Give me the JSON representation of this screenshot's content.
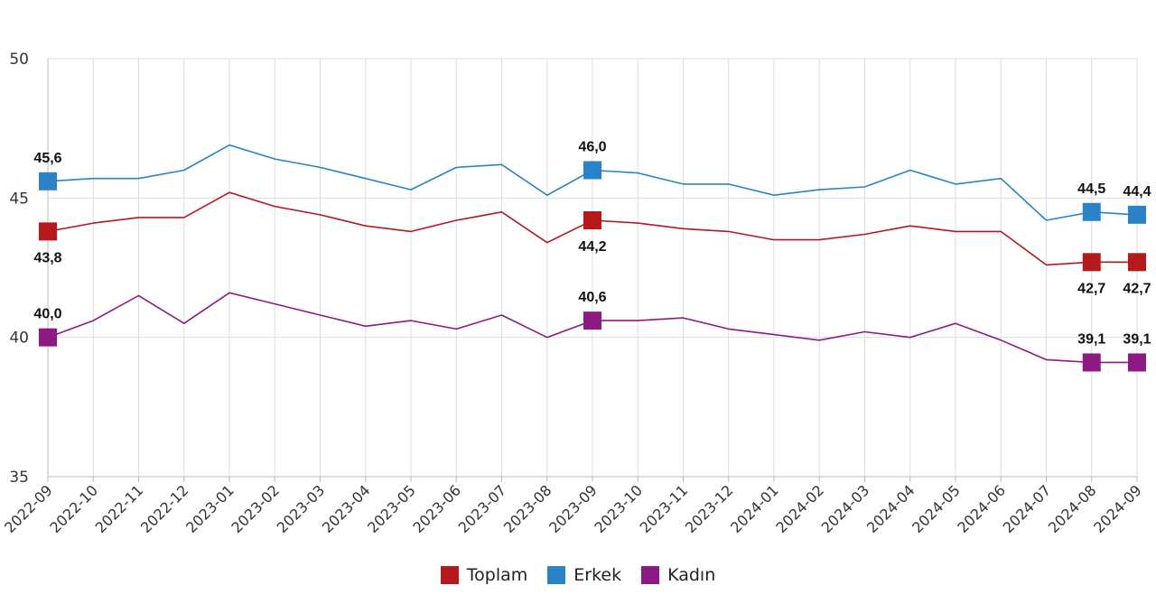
{
  "chart_data": {
    "type": "line",
    "title": "",
    "xlabel": "",
    "ylabel": "",
    "ylim": [
      35,
      50
    ],
    "yticks": [
      35,
      40,
      45,
      50
    ],
    "grid": true,
    "legend_position": "bottom-center",
    "categories": [
      "2022-09",
      "2022-10",
      "2022-11",
      "2022-12",
      "2023-01",
      "2023-02",
      "2023-03",
      "2023-04",
      "2023-05",
      "2023-06",
      "2023-07",
      "2023-08",
      "2023-09",
      "2023-10",
      "2023-11",
      "2023-12",
      "2024-01",
      "2024-02",
      "2024-03",
      "2024-04",
      "2024-05",
      "2024-06",
      "2024-07",
      "2024-08",
      "2024-09"
    ],
    "series": [
      {
        "name": "Toplam",
        "color": "#b5191c",
        "values": [
          43.8,
          44.1,
          44.3,
          44.3,
          45.2,
          44.7,
          44.4,
          44.0,
          43.8,
          44.2,
          44.5,
          43.4,
          44.2,
          44.1,
          43.9,
          43.8,
          43.5,
          43.5,
          43.7,
          44.0,
          43.8,
          43.8,
          42.6,
          42.7,
          42.7
        ],
        "labeled_points": [
          {
            "index": 0,
            "text": "43,8",
            "position": "below"
          },
          {
            "index": 12,
            "text": "44,2",
            "position": "below"
          },
          {
            "index": 23,
            "text": "42,7",
            "position": "below"
          },
          {
            "index": 24,
            "text": "42,7",
            "position": "below"
          }
        ]
      },
      {
        "name": "Erkek",
        "color": "#2a83c7",
        "values": [
          45.6,
          45.7,
          45.7,
          46.0,
          46.9,
          46.4,
          46.1,
          45.7,
          45.3,
          46.1,
          46.2,
          45.1,
          46.0,
          45.9,
          45.5,
          45.5,
          45.1,
          45.3,
          45.4,
          46.0,
          45.5,
          45.7,
          44.2,
          44.5,
          44.4
        ],
        "labeled_points": [
          {
            "index": 0,
            "text": "45,6",
            "position": "above"
          },
          {
            "index": 12,
            "text": "46,0",
            "position": "above"
          },
          {
            "index": 23,
            "text": "44,5",
            "position": "above"
          },
          {
            "index": 24,
            "text": "44,4",
            "position": "above"
          }
        ]
      },
      {
        "name": "Kadın",
        "color": "#8c1a82",
        "values": [
          40.0,
          40.6,
          41.5,
          40.5,
          41.6,
          41.2,
          40.8,
          40.4,
          40.6,
          40.3,
          40.8,
          40.0,
          40.6,
          40.6,
          40.7,
          40.3,
          40.1,
          39.9,
          40.2,
          40.0,
          40.5,
          39.9,
          39.2,
          39.1,
          39.1
        ],
        "labeled_points": [
          {
            "index": 0,
            "text": "40,0",
            "position": "above"
          },
          {
            "index": 12,
            "text": "40,6",
            "position": "above"
          },
          {
            "index": 23,
            "text": "39,1",
            "position": "above"
          },
          {
            "index": 24,
            "text": "39,1",
            "position": "above"
          }
        ]
      }
    ]
  }
}
